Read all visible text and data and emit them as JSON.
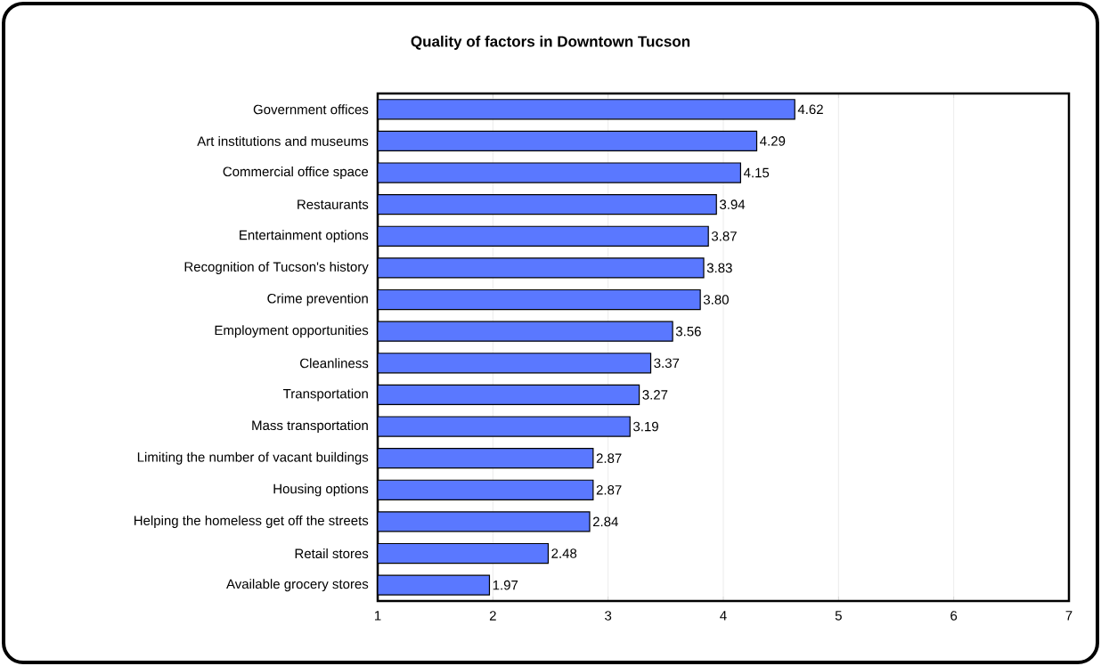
{
  "chart_data": {
    "type": "bar",
    "orientation": "horizontal",
    "title": "**Quality of factors in Downtown Tucson**",
    "categories": [
      "Government offices",
      "Art institutions and museums",
      "Commercial office space",
      "Restaurants",
      "Entertainment options",
      "Recognition of Tucson's history",
      "Crime prevention",
      "Employment opportunities",
      "Cleanliness",
      "Transportation",
      "Mass transportation",
      "Limiting the number of vacant buildings",
      "Housing options",
      "Helping the homeless get off the streets",
      "Retail stores",
      "Available grocery stores"
    ],
    "values": [
      4.62,
      4.29,
      4.15,
      3.94,
      3.87,
      3.83,
      3.8,
      3.56,
      3.37,
      3.27,
      3.19,
      2.87,
      2.87,
      2.84,
      2.48,
      1.97
    ],
    "value_labels": [
      "4.62",
      "4.29",
      "4.15",
      "3.94",
      "3.87",
      "3.83",
      "3.80",
      "3.56",
      "3.37",
      "3.27",
      "3.19",
      "2.87",
      "2.87",
      "2.84",
      "2.48",
      "1.97"
    ],
    "color": "#5a78ff",
    "xlim": [
      1,
      7
    ],
    "xticks": [
      1,
      2,
      3,
      4,
      5,
      6,
      7
    ],
    "grid": "x"
  }
}
